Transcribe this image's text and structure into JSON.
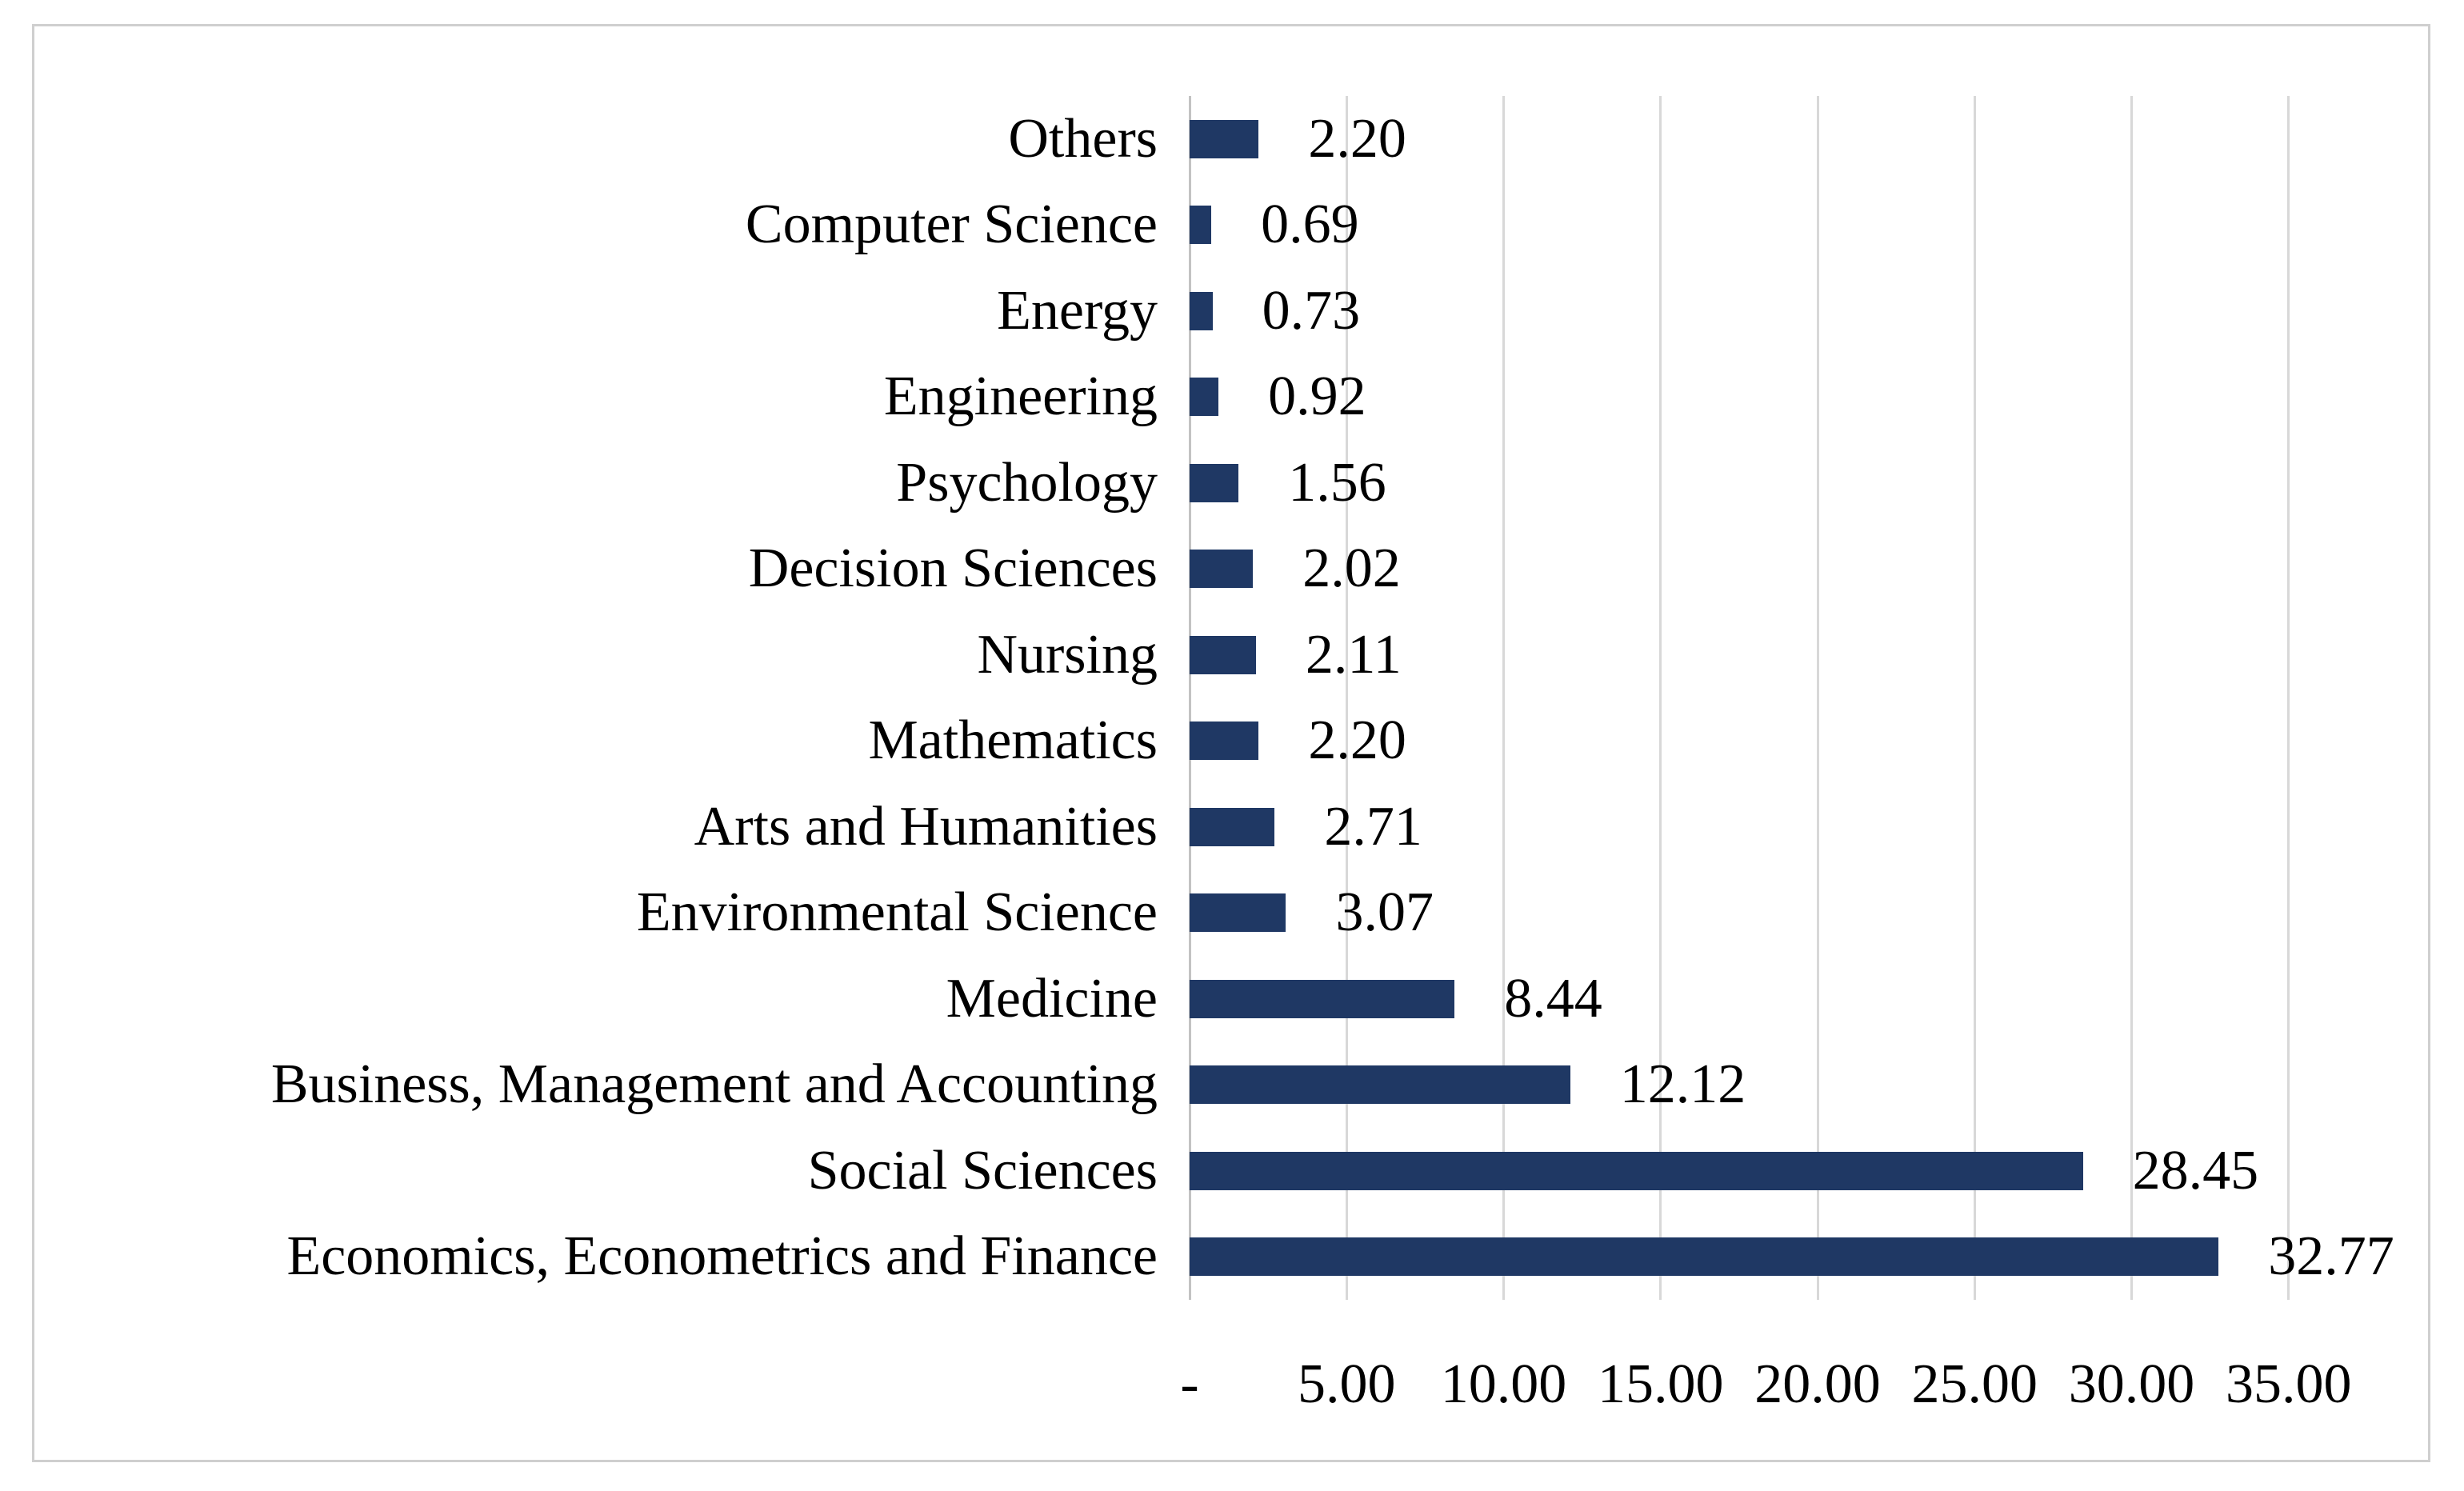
{
  "figure": {
    "background": "#ffffff",
    "border_color": "#cfcfcf"
  },
  "chart_data": {
    "type": "bar",
    "orientation": "horizontal",
    "title": "",
    "legend": "none",
    "grid": "vertical-only",
    "categories": [
      "Others",
      "Computer Science",
      "Energy",
      "Engineering",
      "Psychology",
      "Decision Sciences",
      "Nursing",
      "Mathematics",
      "Arts and Humanities",
      "Environmental Science",
      "Medicine",
      "Business, Management and Accounting",
      "Social Sciences",
      "Economics, Econometrics and Finance"
    ],
    "values": [
      2.2,
      0.69,
      0.73,
      0.92,
      1.56,
      2.02,
      2.11,
      2.2,
      2.71,
      3.07,
      8.44,
      12.12,
      28.45,
      32.77
    ],
    "value_labels": [
      "2.20",
      "0.69",
      "0.73",
      "0.92",
      "1.56",
      "2.02",
      "2.11",
      "2.20",
      "2.71",
      "3.07",
      "8.44",
      "12.12",
      "28.45",
      "32.77"
    ],
    "x_axis": {
      "min": 0,
      "max": 35,
      "tick_values": [
        0,
        5,
        10,
        15,
        20,
        25,
        30,
        35
      ],
      "tick_labels": [
        "-",
        "5.00",
        "10.00",
        "15.00",
        "20.00",
        "25.00",
        "30.00",
        "35.00"
      ]
    },
    "bar_color": "#1F3864",
    "gridline_color": "#D8D8D8",
    "axis_line_color": "#C2C2C2",
    "text_color": "#000000"
  }
}
